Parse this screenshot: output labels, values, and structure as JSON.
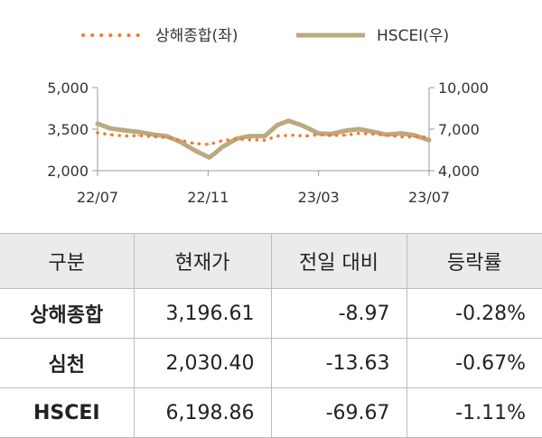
{
  "chart_data": {
    "type": "line",
    "legend": [
      "상해종합(좌)",
      "HSCEI(우)"
    ],
    "legend_position": "top",
    "x_ticks": [
      "22/07",
      "22/11",
      "23/03",
      "23/07"
    ],
    "y_left": {
      "ticks": [
        "5,000",
        "3,500",
        "2,000"
      ],
      "range": [
        2000,
        5000
      ]
    },
    "y_right": {
      "ticks": [
        "10,000",
        "7,000",
        "4,000"
      ],
      "range": [
        4000,
        10000
      ]
    },
    "series": [
      {
        "name": "상해종합(좌)",
        "axis": "left",
        "color": "#ec7d32",
        "style": "dotted",
        "x": [
          "2022-07-01",
          "2022-07-15",
          "2022-08-01",
          "2022-08-15",
          "2022-09-01",
          "2022-09-15",
          "2022-10-01",
          "2022-10-15",
          "2022-11-01",
          "2022-11-15",
          "2022-12-01",
          "2022-12-15",
          "2023-01-01",
          "2023-01-15",
          "2023-02-01",
          "2023-02-15",
          "2023-03-01",
          "2023-03-15",
          "2023-04-01",
          "2023-04-15",
          "2023-05-01",
          "2023-05-15",
          "2023-06-01",
          "2023-06-15",
          "2023-07-01"
        ],
        "values": [
          3370,
          3300,
          3250,
          3270,
          3230,
          3200,
          3100,
          2980,
          2950,
          3080,
          3150,
          3120,
          3100,
          3250,
          3280,
          3250,
          3300,
          3270,
          3280,
          3350,
          3320,
          3280,
          3220,
          3230,
          3200
        ]
      },
      {
        "name": "HSCEI(우)",
        "axis": "right",
        "color": "#bba97f",
        "style": "solid",
        "x": [
          "2022-07-01",
          "2022-07-15",
          "2022-08-01",
          "2022-08-15",
          "2022-09-01",
          "2022-09-15",
          "2022-10-01",
          "2022-10-15",
          "2022-11-01",
          "2022-11-08",
          "2022-11-15",
          "2022-12-01",
          "2022-12-15",
          "2023-01-01",
          "2023-01-15",
          "2023-01-27",
          "2023-02-10",
          "2023-02-20",
          "2023-03-01",
          "2023-03-15",
          "2023-04-01",
          "2023-04-15",
          "2023-05-01",
          "2023-05-15",
          "2023-06-01",
          "2023-06-15",
          "2023-07-01"
        ],
        "values": [
          7400,
          7050,
          6900,
          6800,
          6600,
          6500,
          6050,
          5500,
          4950,
          5300,
          5700,
          6300,
          6500,
          6500,
          7300,
          7600,
          7300,
          7000,
          6700,
          6650,
          6900,
          7000,
          6800,
          6600,
          6700,
          6550,
          6200
        ]
      }
    ]
  },
  "table": {
    "headers": [
      "구분",
      "현재가",
      "전일 대비",
      "등락률"
    ],
    "rows": [
      {
        "name": "상해종합",
        "price": "3,196.61",
        "change": "-8.97",
        "rate": "-0.28%"
      },
      {
        "name": "심천",
        "price": "2,030.40",
        "change": "-13.63",
        "rate": "-0.67%"
      },
      {
        "name": "HSCEI",
        "price": "6,198.86",
        "change": "-69.67",
        "rate": "-1.11%"
      }
    ]
  }
}
